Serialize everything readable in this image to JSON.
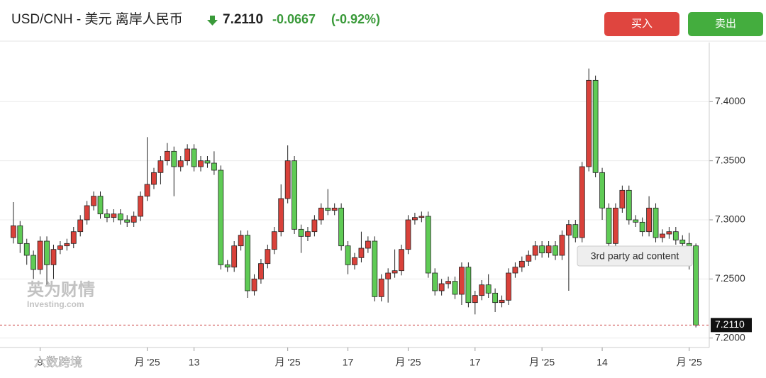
{
  "header": {
    "title": "USD/CNH - 美元 离岸人民币",
    "price": "7.2110",
    "change": "-0.0667",
    "change_pct": "(-0.92%)",
    "buy": "买入",
    "sell": "卖出"
  },
  "tooltip": "3rd party ad content",
  "watermark": {
    "brand": "英为财情",
    "site": "Investing.com",
    "corner": "六数跨境"
  },
  "chart_data": {
    "type": "candlestick",
    "up_color": "#d9413a",
    "down_color": "#5fcb55",
    "open": [
      7.285,
      7.295,
      7.28,
      7.27,
      7.258,
      7.282,
      7.262,
      7.275,
      7.278,
      7.28,
      7.29,
      7.3,
      7.312,
      7.32,
      7.305,
      7.302,
      7.305,
      7.3,
      7.298,
      7.303,
      7.32,
      7.33,
      7.34,
      7.35,
      7.358,
      7.345,
      7.35,
      7.36,
      7.345,
      7.35,
      7.348,
      7.342,
      7.262,
      7.26,
      7.278,
      7.287,
      7.24,
      7.25,
      7.263,
      7.275,
      7.29,
      7.318,
      7.35,
      7.292,
      7.286,
      7.29,
      7.3,
      7.31,
      7.308,
      7.31,
      7.278,
      7.262,
      7.268,
      7.276,
      7.282,
      7.235,
      7.25,
      7.255,
      7.257,
      7.275,
      7.3,
      7.302,
      7.303,
      7.255,
      7.24,
      7.246,
      7.248,
      7.237,
      7.26,
      7.23,
      7.236,
      7.245,
      7.238,
      7.23,
      7.232,
      7.255,
      7.26,
      7.265,
      7.27,
      7.278,
      7.272,
      7.278,
      7.27,
      7.287,
      7.296,
      7.285,
      7.345,
      7.418,
      7.34,
      7.31,
      7.28,
      7.31,
      7.325,
      7.3,
      7.298,
      7.29,
      7.31,
      7.285,
      7.288,
      7.29,
      7.283,
      7.28,
      7.278
    ],
    "high": [
      7.315,
      7.299,
      7.284,
      7.274,
      7.286,
      7.286,
      7.279,
      7.282,
      7.284,
      7.294,
      7.304,
      7.316,
      7.324,
      7.324,
      7.309,
      7.309,
      7.309,
      7.304,
      7.307,
      7.324,
      7.37,
      7.344,
      7.354,
      7.365,
      7.362,
      7.354,
      7.364,
      7.364,
      7.354,
      7.354,
      7.358,
      7.346,
      7.266,
      7.282,
      7.291,
      7.291,
      7.254,
      7.267,
      7.279,
      7.294,
      7.33,
      7.363,
      7.354,
      7.296,
      7.294,
      7.304,
      7.314,
      7.326,
      7.314,
      7.314,
      7.282,
      7.272,
      7.29,
      7.286,
      7.286,
      7.254,
      7.259,
      7.275,
      7.279,
      7.304,
      7.306,
      7.307,
      7.307,
      7.259,
      7.25,
      7.252,
      7.252,
      7.264,
      7.264,
      7.24,
      7.249,
      7.254,
      7.242,
      7.236,
      7.259,
      7.264,
      7.269,
      7.274,
      7.282,
      7.282,
      7.282,
      7.282,
      7.291,
      7.3,
      7.3,
      7.349,
      7.428,
      7.422,
      7.344,
      7.314,
      7.314,
      7.329,
      7.329,
      7.304,
      7.302,
      7.32,
      7.314,
      7.292,
      7.294,
      7.294,
      7.287,
      7.289,
      7.28
    ],
    "low": [
      7.28,
      7.272,
      7.262,
      7.25,
      7.254,
      7.245,
      7.25,
      7.271,
      7.274,
      7.276,
      7.286,
      7.296,
      7.308,
      7.301,
      7.298,
      7.298,
      7.296,
      7.294,
      7.294,
      7.299,
      7.316,
      7.326,
      7.33,
      7.346,
      7.32,
      7.341,
      7.346,
      7.341,
      7.341,
      7.344,
      7.338,
      7.258,
      7.256,
      7.256,
      7.274,
      7.234,
      7.236,
      7.246,
      7.259,
      7.271,
      7.286,
      7.314,
      7.288,
      7.272,
      7.282,
      7.286,
      7.296,
      7.304,
      7.304,
      7.274,
      7.254,
      7.258,
      7.264,
      7.272,
      7.231,
      7.231,
      7.23,
      7.251,
      7.253,
      7.271,
      7.296,
      7.298,
      7.251,
      7.236,
      7.236,
      7.242,
      7.233,
      7.228,
      7.226,
      7.22,
      7.232,
      7.234,
      7.222,
      7.226,
      7.228,
      7.251,
      7.256,
      7.261,
      7.266,
      7.268,
      7.268,
      7.266,
      7.266,
      7.24,
      7.281,
      7.281,
      7.341,
      7.336,
      7.3,
      7.276,
      7.276,
      7.306,
      7.296,
      7.294,
      7.286,
      7.286,
      7.281,
      7.281,
      7.284,
      7.279,
      7.276,
      7.258,
      7.209
    ],
    "close": [
      7.295,
      7.28,
      7.27,
      7.258,
      7.282,
      7.262,
      7.275,
      7.278,
      7.28,
      7.29,
      7.3,
      7.312,
      7.32,
      7.305,
      7.302,
      7.305,
      7.3,
      7.298,
      7.303,
      7.32,
      7.33,
      7.34,
      7.35,
      7.358,
      7.345,
      7.35,
      7.36,
      7.345,
      7.35,
      7.348,
      7.342,
      7.262,
      7.26,
      7.278,
      7.287,
      7.24,
      7.25,
      7.263,
      7.275,
      7.29,
      7.318,
      7.35,
      7.292,
      7.286,
      7.29,
      7.3,
      7.31,
      7.308,
      7.31,
      7.278,
      7.262,
      7.268,
      7.276,
      7.282,
      7.235,
      7.25,
      7.255,
      7.257,
      7.275,
      7.3,
      7.302,
      7.303,
      7.255,
      7.24,
      7.246,
      7.248,
      7.237,
      7.26,
      7.23,
      7.236,
      7.245,
      7.238,
      7.23,
      7.232,
      7.255,
      7.26,
      7.265,
      7.27,
      7.278,
      7.272,
      7.278,
      7.27,
      7.287,
      7.296,
      7.285,
      7.345,
      7.418,
      7.34,
      7.31,
      7.28,
      7.31,
      7.325,
      7.3,
      7.298,
      7.29,
      7.31,
      7.285,
      7.288,
      7.29,
      7.283,
      7.28,
      7.278,
      7.211
    ],
    "xlim": [
      -2,
      104
    ],
    "xticks": [
      {
        "value": 4,
        "label": "9"
      },
      {
        "value": 20,
        "label": "月 '25"
      },
      {
        "value": 27,
        "label": "13"
      },
      {
        "value": 41,
        "label": "月 '25"
      },
      {
        "value": 50,
        "label": "17"
      },
      {
        "value": 59,
        "label": "月 '25"
      },
      {
        "value": 69,
        "label": "17"
      },
      {
        "value": 79,
        "label": "月 '25"
      },
      {
        "value": 88,
        "label": "14"
      },
      {
        "value": 101,
        "label": "月 '25"
      }
    ],
    "ylim": [
      7.192,
      7.45
    ],
    "yticks": [
      {
        "value": 7.2,
        "label": "7.2000"
      },
      {
        "value": 7.25,
        "label": "7.2500"
      },
      {
        "value": 7.3,
        "label": "7.3000"
      },
      {
        "value": 7.35,
        "label": "7.3500"
      },
      {
        "value": 7.4,
        "label": "7.4000"
      }
    ],
    "grid": true,
    "last_price": {
      "value": 7.211,
      "label": "7.2110"
    }
  }
}
